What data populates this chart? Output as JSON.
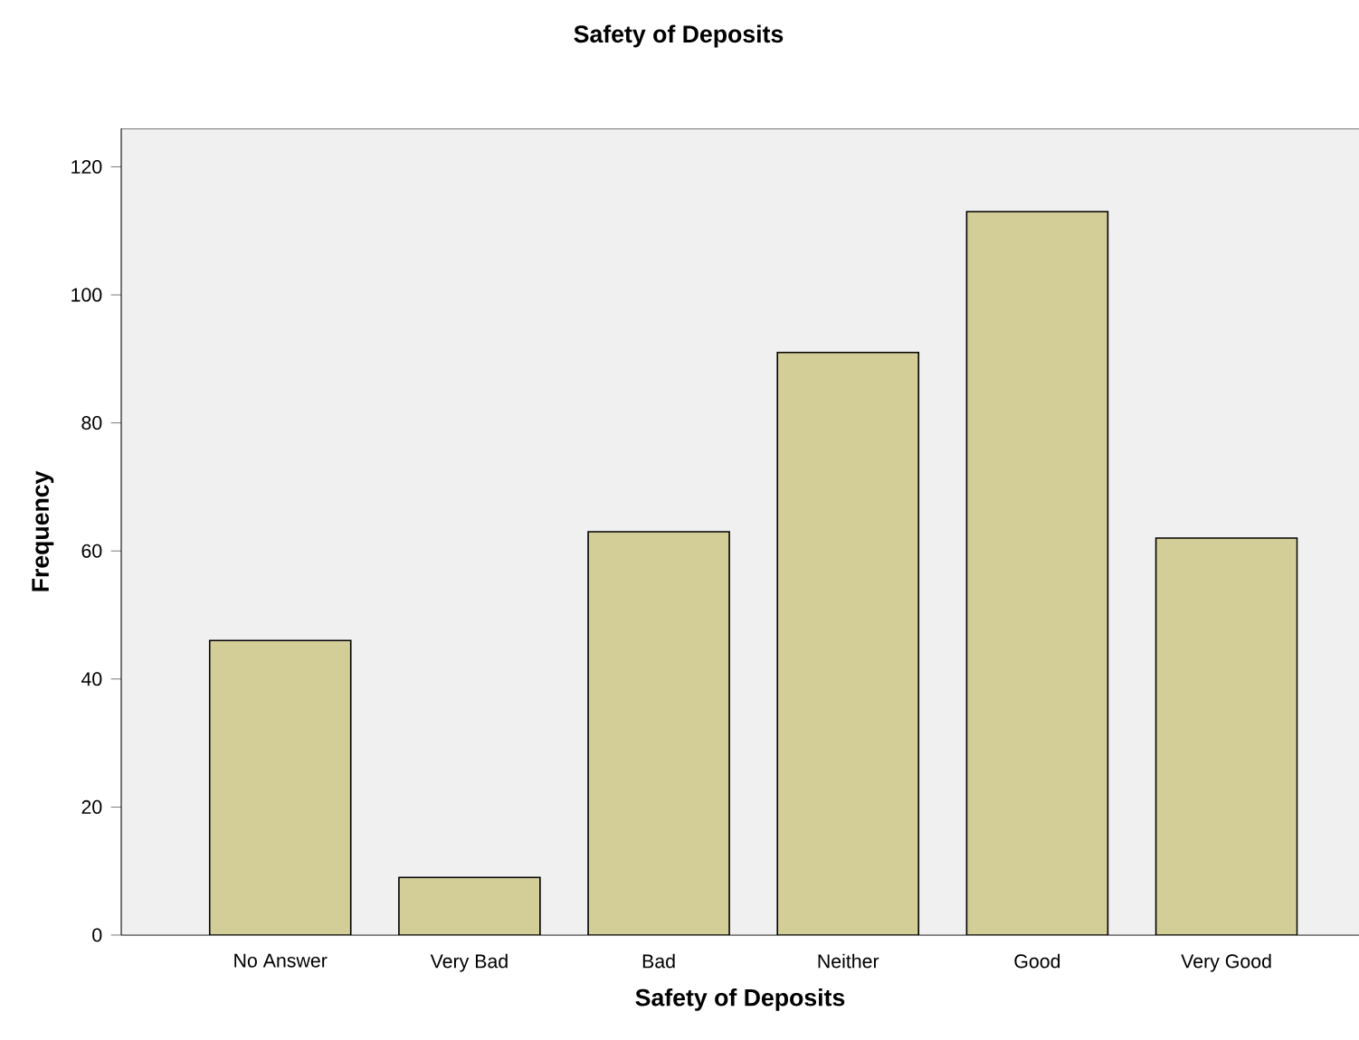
{
  "chart_data": {
    "type": "bar",
    "title": "Safety of Deposits",
    "xlabel": "Safety of Deposits",
    "ylabel": "Frequency",
    "categories": [
      "No Answer",
      "Very Bad",
      "Bad",
      "Neither",
      "Good",
      "Very Good"
    ],
    "values": [
      46,
      9,
      63,
      91,
      113,
      62
    ],
    "color": "#d3ce97",
    "ylim": [
      0,
      126
    ],
    "yticks": [
      0,
      20,
      40,
      60,
      80,
      100,
      120
    ],
    "grid": false
  }
}
